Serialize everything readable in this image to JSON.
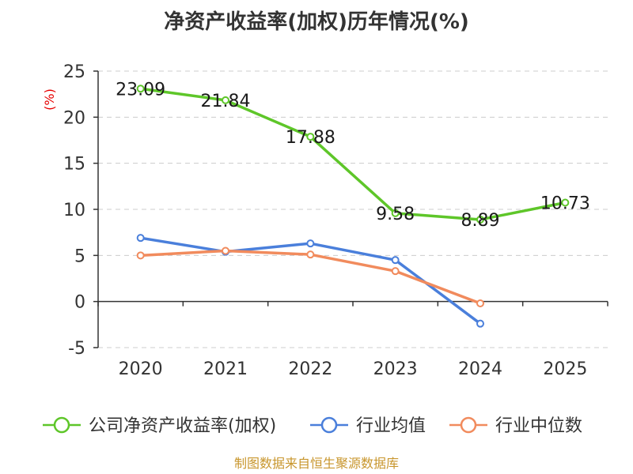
{
  "chart_data": {
    "type": "line",
    "title": "净资产收益率(加权)历年情况(%)",
    "ylabel": "(%)",
    "xlabel": "",
    "categories": [
      "2020",
      "2021",
      "2022",
      "2023",
      "2024",
      "2025"
    ],
    "ylim": [
      -5,
      25
    ],
    "yticks": [
      -5,
      0,
      5,
      10,
      15,
      20,
      25
    ],
    "grid": true,
    "legend_position": "bottom",
    "series": [
      {
        "name": "公司净资产收益率(加权)",
        "color": "#5ec629",
        "values": [
          23.09,
          21.84,
          17.88,
          9.58,
          8.89,
          10.73
        ],
        "labels": [
          "23.09",
          "21.84",
          "17.88",
          "9.58",
          "8.89",
          "10.73"
        ]
      },
      {
        "name": "行业均值",
        "color": "#4a7fdb",
        "values": [
          6.9,
          5.4,
          6.3,
          4.5,
          -2.4,
          null
        ]
      },
      {
        "name": "行业中位数",
        "color": "#f18b5d",
        "values": [
          5.0,
          5.5,
          5.1,
          3.3,
          -0.2,
          null
        ]
      }
    ],
    "source": "制图数据来自恒生聚源数据库"
  }
}
